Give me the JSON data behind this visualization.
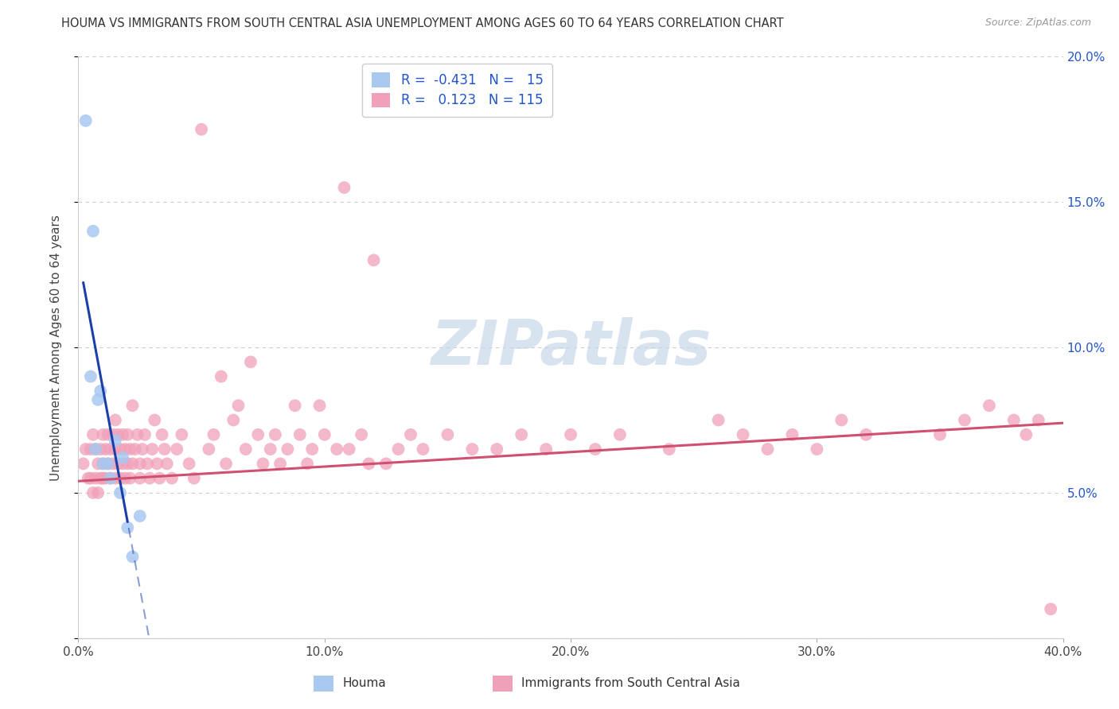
{
  "title": "HOUMA VS IMMIGRANTS FROM SOUTH CENTRAL ASIA UNEMPLOYMENT AMONG AGES 60 TO 64 YEARS CORRELATION CHART",
  "source": "Source: ZipAtlas.com",
  "ylabel": "Unemployment Among Ages 60 to 64 years",
  "xlim": [
    0.0,
    0.4
  ],
  "ylim": [
    0.0,
    0.2
  ],
  "houma_R": -0.431,
  "houma_N": 15,
  "imm_R": 0.123,
  "imm_N": 115,
  "blue_color": "#a8c8f0",
  "pink_color": "#f0a0b8",
  "blue_line_color": "#1a3faa",
  "pink_line_color": "#d05070",
  "watermark_color": "#c8d8ea",
  "background_color": "#ffffff",
  "grid_color": "#cccccc",
  "houma_x": [
    0.003,
    0.005,
    0.006,
    0.007,
    0.008,
    0.009,
    0.01,
    0.012,
    0.013,
    0.015,
    0.017,
    0.018,
    0.02,
    0.022,
    0.025
  ],
  "houma_y": [
    0.178,
    0.09,
    0.14,
    0.065,
    0.082,
    0.085,
    0.06,
    0.06,
    0.055,
    0.068,
    0.05,
    0.062,
    0.038,
    0.028,
    0.042
  ],
  "imm_x": [
    0.002,
    0.003,
    0.004,
    0.005,
    0.005,
    0.006,
    0.006,
    0.007,
    0.007,
    0.008,
    0.008,
    0.009,
    0.009,
    0.01,
    0.01,
    0.01,
    0.011,
    0.011,
    0.012,
    0.012,
    0.013,
    0.013,
    0.014,
    0.014,
    0.015,
    0.015,
    0.015,
    0.016,
    0.016,
    0.017,
    0.017,
    0.018,
    0.018,
    0.019,
    0.019,
    0.02,
    0.02,
    0.021,
    0.021,
    0.022,
    0.022,
    0.023,
    0.024,
    0.025,
    0.025,
    0.026,
    0.027,
    0.028,
    0.029,
    0.03,
    0.031,
    0.032,
    0.033,
    0.034,
    0.035,
    0.036,
    0.038,
    0.04,
    0.042,
    0.045,
    0.047,
    0.05,
    0.053,
    0.055,
    0.058,
    0.06,
    0.063,
    0.065,
    0.068,
    0.07,
    0.073,
    0.075,
    0.078,
    0.08,
    0.082,
    0.085,
    0.088,
    0.09,
    0.093,
    0.095,
    0.098,
    0.1,
    0.105,
    0.108,
    0.11,
    0.115,
    0.118,
    0.12,
    0.125,
    0.13,
    0.135,
    0.14,
    0.15,
    0.16,
    0.17,
    0.18,
    0.19,
    0.2,
    0.21,
    0.22,
    0.24,
    0.26,
    0.27,
    0.28,
    0.29,
    0.3,
    0.31,
    0.32,
    0.35,
    0.36,
    0.37,
    0.38,
    0.385,
    0.39,
    0.395
  ],
  "imm_y": [
    0.06,
    0.065,
    0.055,
    0.065,
    0.055,
    0.07,
    0.05,
    0.065,
    0.055,
    0.06,
    0.05,
    0.065,
    0.055,
    0.07,
    0.06,
    0.055,
    0.065,
    0.055,
    0.07,
    0.06,
    0.065,
    0.055,
    0.07,
    0.06,
    0.065,
    0.055,
    0.075,
    0.07,
    0.06,
    0.065,
    0.055,
    0.07,
    0.06,
    0.065,
    0.055,
    0.07,
    0.06,
    0.065,
    0.055,
    0.08,
    0.06,
    0.065,
    0.07,
    0.06,
    0.055,
    0.065,
    0.07,
    0.06,
    0.055,
    0.065,
    0.075,
    0.06,
    0.055,
    0.07,
    0.065,
    0.06,
    0.055,
    0.065,
    0.07,
    0.06,
    0.055,
    0.175,
    0.065,
    0.07,
    0.09,
    0.06,
    0.075,
    0.08,
    0.065,
    0.095,
    0.07,
    0.06,
    0.065,
    0.07,
    0.06,
    0.065,
    0.08,
    0.07,
    0.06,
    0.065,
    0.08,
    0.07,
    0.065,
    0.155,
    0.065,
    0.07,
    0.06,
    0.13,
    0.06,
    0.065,
    0.07,
    0.065,
    0.07,
    0.065,
    0.065,
    0.07,
    0.065,
    0.07,
    0.065,
    0.07,
    0.065,
    0.075,
    0.07,
    0.065,
    0.07,
    0.065,
    0.075,
    0.07,
    0.07,
    0.075,
    0.08,
    0.075,
    0.07,
    0.075,
    0.01
  ]
}
